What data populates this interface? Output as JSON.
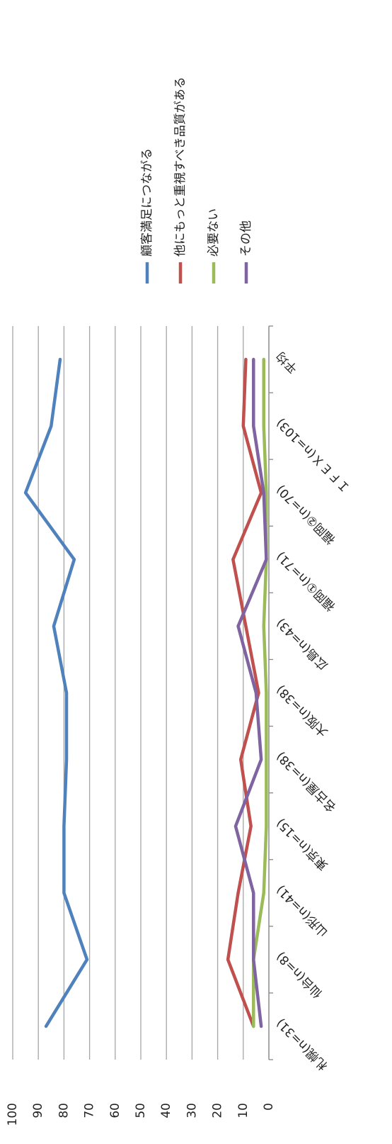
{
  "chart_data": {
    "type": "line",
    "categories": [
      "札幌(n=31)",
      "仙台(n=8)",
      "山形(n=41)",
      "東京(n=15)",
      "名古屋(n=38)",
      "大阪(n=38)",
      "広島(n=43)",
      "福岡①(n=71)",
      "福岡②(n=70)",
      "ＩＦＥＸ(n=103)",
      "平均"
    ],
    "series": [
      {
        "name": "顧客満足につながる",
        "color": "#4f81bd",
        "values": [
          87,
          71,
          80,
          80,
          79,
          79,
          84,
          76,
          95,
          85,
          81.5
        ]
      },
      {
        "name": "他にもっと重視すべき品質がある",
        "color": "#c0504d",
        "values": [
          6,
          16,
          12,
          7,
          11,
          4,
          9,
          14,
          3,
          10,
          9
        ]
      },
      {
        "name": "必要ない",
        "color": "#9bbb59",
        "values": [
          6,
          6,
          2,
          1,
          1,
          1,
          2,
          1,
          1,
          2,
          2
        ]
      },
      {
        "name": "その他",
        "color": "#8064a2",
        "values": [
          3,
          6,
          6,
          13,
          3,
          5,
          12,
          1,
          2,
          6,
          6
        ]
      }
    ],
    "ylim": [
      0,
      100
    ],
    "yticks": [
      0,
      10,
      20,
      30,
      40,
      50,
      60,
      70,
      80,
      90,
      100
    ],
    "grid": true
  }
}
